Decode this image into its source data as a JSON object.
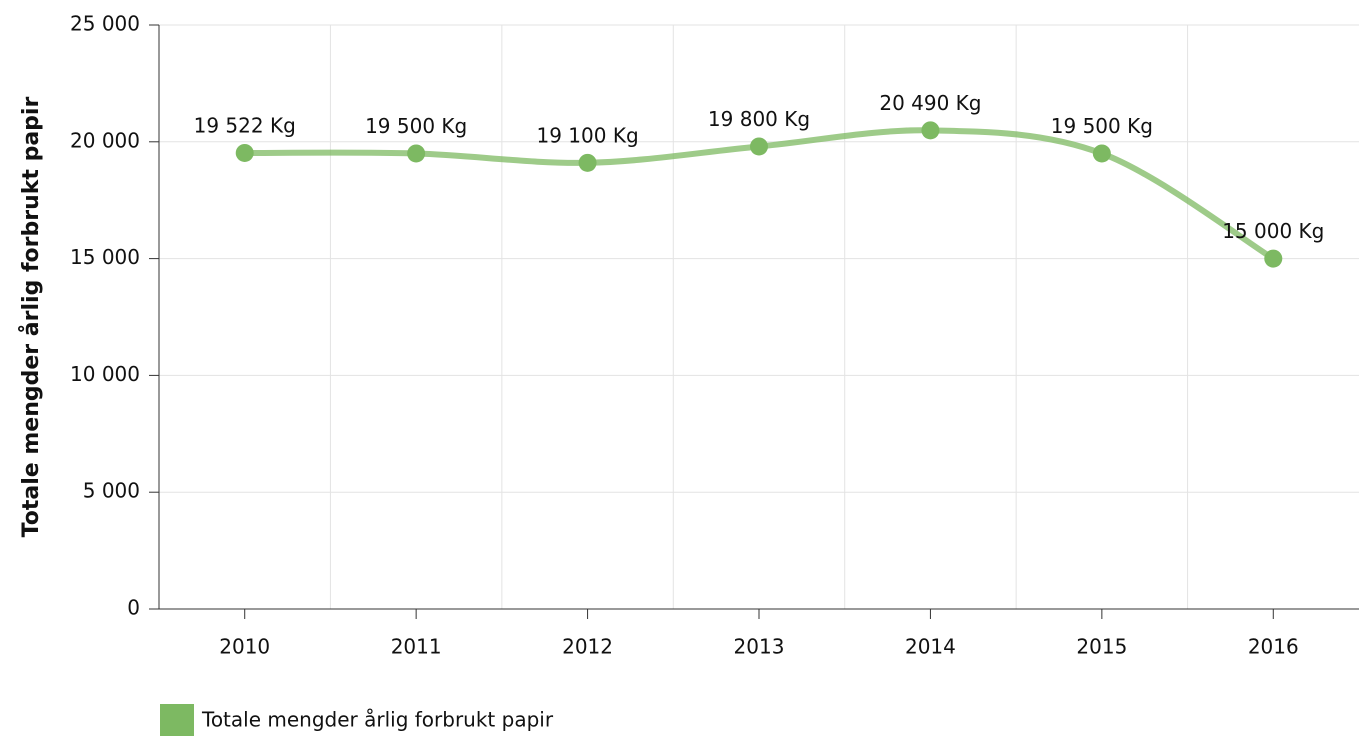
{
  "chart_data": {
    "type": "line",
    "y_axis_label": "Totale mengder årlig forbrukt papir",
    "categories": [
      "2010",
      "2011",
      "2012",
      "2013",
      "2014",
      "2015",
      "2016"
    ],
    "series": [
      {
        "name": "Totale mengder årlig forbrukt papir",
        "color": "#7db962",
        "values": [
          19522,
          19500,
          19100,
          19800,
          20490,
          19500,
          15000
        ],
        "value_labels": [
          "19 522 Kg",
          "19 500 Kg",
          "19 100 Kg",
          "19 800 Kg",
          "20 490 Kg",
          "19 500 Kg",
          "15 000 Kg"
        ]
      }
    ],
    "ylim": [
      0,
      25000
    ],
    "yticks": [
      0,
      {
        "value": 5000,
        "label": "5 000"
      },
      {
        "value": 10000,
        "label": "10 000"
      },
      {
        "value": 15000,
        "label": "15 000"
      },
      {
        "value": 20000,
        "label": "20 000"
      },
      {
        "value": 25000,
        "label": "25 000"
      }
    ],
    "grid": true,
    "legend": "bottom-left"
  }
}
